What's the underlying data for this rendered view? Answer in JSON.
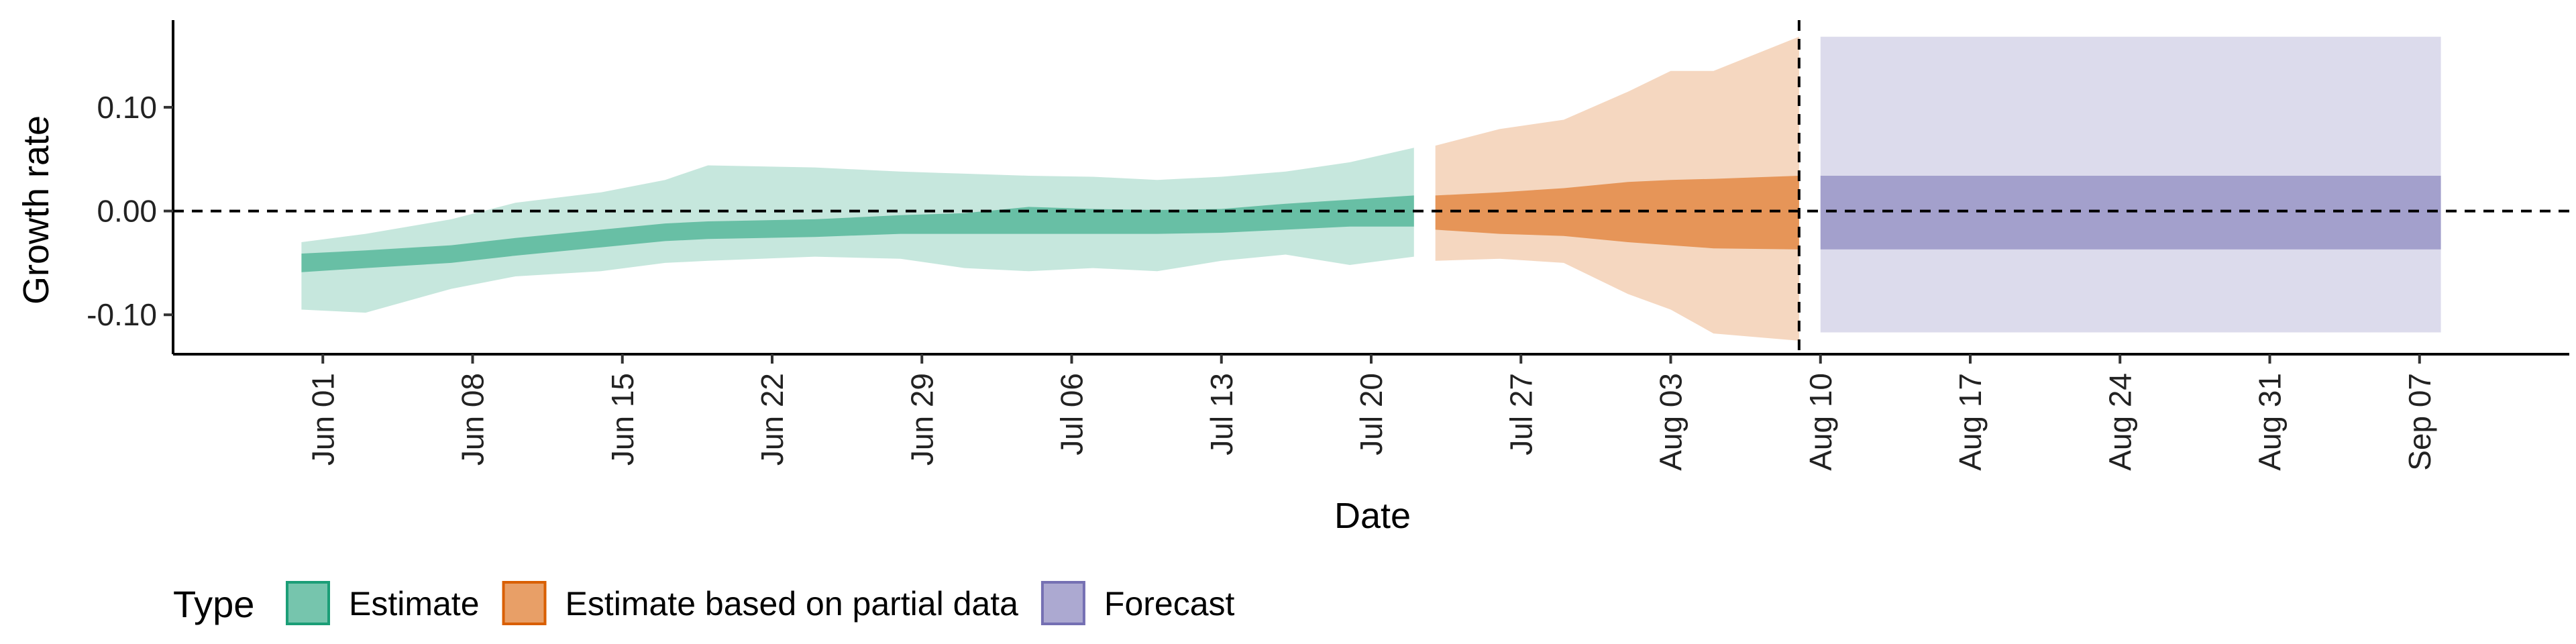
{
  "chart_data": {
    "type": "area",
    "xlabel": "Date",
    "ylabel": "Growth rate",
    "x_type": "date",
    "xlim": [
      "2021-05-25",
      "2021-09-14"
    ],
    "ylim": [
      -0.138,
      0.184
    ],
    "y_ticks": [
      {
        "value": 0.1,
        "label": "0.10"
      },
      {
        "value": 0.0,
        "label": "0.00"
      },
      {
        "value": -0.1,
        "label": "-0.10"
      }
    ],
    "x_ticks": [
      {
        "date": "2021-06-01",
        "label": "Jun 01"
      },
      {
        "date": "2021-06-08",
        "label": "Jun 08"
      },
      {
        "date": "2021-06-15",
        "label": "Jun 15"
      },
      {
        "date": "2021-06-22",
        "label": "Jun 22"
      },
      {
        "date": "2021-06-29",
        "label": "Jun 29"
      },
      {
        "date": "2021-07-06",
        "label": "Jul 06"
      },
      {
        "date": "2021-07-13",
        "label": "Jul 13"
      },
      {
        "date": "2021-07-20",
        "label": "Jul 20"
      },
      {
        "date": "2021-07-27",
        "label": "Jul 27"
      },
      {
        "date": "2021-08-03",
        "label": "Aug 03"
      },
      {
        "date": "2021-08-10",
        "label": "Aug 10"
      },
      {
        "date": "2021-08-17",
        "label": "Aug 17"
      },
      {
        "date": "2021-08-24",
        "label": "Aug 24"
      },
      {
        "date": "2021-08-31",
        "label": "Aug 31"
      },
      {
        "date": "2021-09-07",
        "label": "Sep 07"
      }
    ],
    "reference_lines": {
      "horizontal_y": 0.0,
      "vertical_date": "2021-08-09",
      "style": "dashed"
    },
    "grid": false,
    "legend": {
      "title": "Type",
      "position": "bottom",
      "entries": [
        {
          "label": "Estimate",
          "color": "#1b9e77"
        },
        {
          "label": "Estimate based on partial data",
          "color": "#d95f02"
        },
        {
          "label": "Forecast",
          "color": "#7570b3"
        }
      ]
    },
    "series": [
      {
        "name": "Estimate",
        "color": "#1b9e77",
        "points": [
          {
            "date": "2021-05-31",
            "lo90": -0.095,
            "lo50": -0.059,
            "hi50": -0.041,
            "hi90": -0.03
          },
          {
            "date": "2021-06-03",
            "lo90": -0.098,
            "lo50": -0.055,
            "hi50": -0.038,
            "hi90": -0.022
          },
          {
            "date": "2021-06-07",
            "lo90": -0.075,
            "lo50": -0.05,
            "hi50": -0.033,
            "hi90": -0.008
          },
          {
            "date": "2021-06-10",
            "lo90": -0.063,
            "lo50": -0.043,
            "hi50": -0.026,
            "hi90": 0.008
          },
          {
            "date": "2021-06-14",
            "lo90": -0.058,
            "lo50": -0.035,
            "hi50": -0.018,
            "hi90": 0.018
          },
          {
            "date": "2021-06-17",
            "lo90": -0.05,
            "lo50": -0.029,
            "hi50": -0.012,
            "hi90": 0.03
          },
          {
            "date": "2021-06-19",
            "lo90": -0.048,
            "lo50": -0.027,
            "hi50": -0.01,
            "hi90": 0.044
          },
          {
            "date": "2021-06-24",
            "lo90": -0.044,
            "lo50": -0.025,
            "hi50": -0.008,
            "hi90": 0.042
          },
          {
            "date": "2021-06-28",
            "lo90": -0.046,
            "lo50": -0.022,
            "hi50": -0.004,
            "hi90": 0.038
          },
          {
            "date": "2021-07-01",
            "lo90": -0.055,
            "lo50": -0.022,
            "hi50": -0.002,
            "hi90": 0.036
          },
          {
            "date": "2021-07-04",
            "lo90": -0.058,
            "lo50": -0.022,
            "hi50": 0.004,
            "hi90": 0.034
          },
          {
            "date": "2021-07-07",
            "lo90": -0.055,
            "lo50": -0.022,
            "hi50": 0.002,
            "hi90": 0.033
          },
          {
            "date": "2021-07-10",
            "lo90": -0.058,
            "lo50": -0.022,
            "hi50": 0.001,
            "hi90": 0.03
          },
          {
            "date": "2021-07-13",
            "lo90": -0.048,
            "lo50": -0.021,
            "hi50": 0.002,
            "hi90": 0.033
          },
          {
            "date": "2021-07-16",
            "lo90": -0.042,
            "lo50": -0.018,
            "hi50": 0.007,
            "hi90": 0.038
          },
          {
            "date": "2021-07-19",
            "lo90": -0.052,
            "lo50": -0.015,
            "hi50": 0.011,
            "hi90": 0.047
          },
          {
            "date": "2021-07-22",
            "lo90": -0.044,
            "lo50": -0.015,
            "hi50": 0.015,
            "hi90": 0.061
          }
        ]
      },
      {
        "name": "Estimate based on partial data",
        "color": "#d95f02",
        "points": [
          {
            "date": "2021-07-23",
            "lo90": -0.048,
            "lo50": -0.018,
            "hi50": 0.015,
            "hi90": 0.063
          },
          {
            "date": "2021-07-26",
            "lo90": -0.046,
            "lo50": -0.022,
            "hi50": 0.018,
            "hi90": 0.079
          },
          {
            "date": "2021-07-29",
            "lo90": -0.05,
            "lo50": -0.024,
            "hi50": 0.022,
            "hi90": 0.088
          },
          {
            "date": "2021-08-01",
            "lo90": -0.08,
            "lo50": -0.03,
            "hi50": 0.028,
            "hi90": 0.115
          },
          {
            "date": "2021-08-03",
            "lo90": -0.095,
            "lo50": -0.033,
            "hi50": 0.03,
            "hi90": 0.135
          },
          {
            "date": "2021-08-05",
            "lo90": -0.118,
            "lo50": -0.036,
            "hi50": 0.031,
            "hi90": 0.135
          },
          {
            "date": "2021-08-09",
            "lo90": -0.125,
            "lo50": -0.037,
            "hi50": 0.034,
            "hi90": 0.168
          }
        ]
      },
      {
        "name": "Forecast",
        "color": "#7570b3",
        "points": [
          {
            "date": "2021-08-10",
            "lo90": -0.117,
            "lo50": -0.037,
            "hi50": 0.034,
            "hi90": 0.168
          },
          {
            "date": "2021-09-08",
            "lo90": -0.117,
            "lo50": -0.037,
            "hi50": 0.034,
            "hi90": 0.168
          }
        ]
      }
    ]
  }
}
